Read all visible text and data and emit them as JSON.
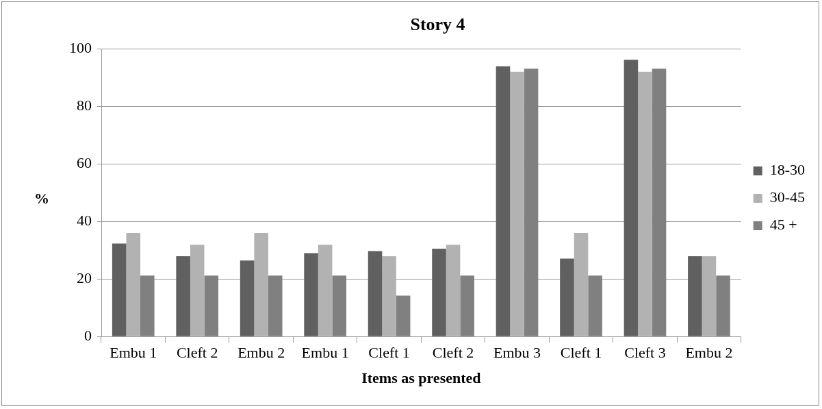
{
  "chart_data": {
    "type": "bar",
    "title": "Story 4",
    "xlabel": "Items as presented",
    "ylabel": "%",
    "categories": [
      "Embu 1",
      "Cleft 2",
      "Embu 2",
      "Embu 1",
      "Cleft 1",
      "Cleft 2",
      "Embu 3",
      "Cleft 1",
      "Cleft 3",
      "Embu 2"
    ],
    "series": [
      {
        "name": "18-30",
        "color": "#606060",
        "values": [
          32.3,
          27.9,
          26.4,
          29.0,
          29.7,
          30.5,
          93.9,
          27.1,
          96.2,
          27.9
        ]
      },
      {
        "name": "30-45",
        "color": "#b2b2b2",
        "values": [
          36.0,
          31.9,
          36.0,
          31.9,
          27.9,
          31.9,
          92.0,
          36.0,
          92.0,
          27.9
        ]
      },
      {
        "name": "45 +",
        "color": "#808080",
        "values": [
          21.2,
          21.2,
          21.2,
          21.2,
          14.2,
          21.2,
          93.1,
          21.2,
          93.1,
          21.2
        ]
      }
    ],
    "ylim": [
      0,
      100
    ],
    "yticks": [
      0,
      20,
      40,
      60,
      80,
      100
    ],
    "grid": "y",
    "legend": "right"
  }
}
